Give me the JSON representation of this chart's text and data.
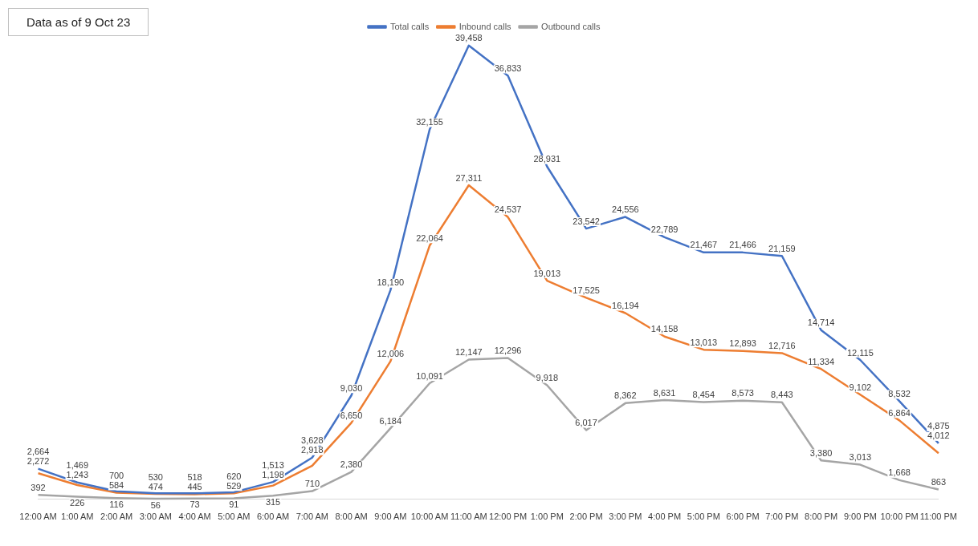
{
  "chart_data": {
    "type": "line",
    "annotations": [
      "Data as of 9 Oct 23"
    ],
    "categories": [
      "12:00 AM",
      "1:00 AM",
      "2:00 AM",
      "3:00 AM",
      "4:00 AM",
      "5:00 AM",
      "6:00 AM",
      "7:00 AM",
      "8:00 AM",
      "9:00 AM",
      "10:00 AM",
      "11:00 AM",
      "12:00 PM",
      "1:00 PM",
      "2:00 PM",
      "3:00 PM",
      "4:00 PM",
      "5:00 PM",
      "6:00 PM",
      "7:00 PM",
      "8:00 PM",
      "9:00 PM",
      "10:00 PM",
      "11:00 PM"
    ],
    "series": [
      {
        "name": "Total calls",
        "color": "#4472c4",
        "values": [
          2664,
          1469,
          700,
          530,
          518,
          620,
          1513,
          3628,
          9030,
          18190,
          32155,
          39458,
          36833,
          28931,
          23542,
          24556,
          22789,
          21467,
          21466,
          21159,
          14714,
          12115,
          8532,
          4875
        ],
        "value_labels": [
          "2,664",
          "1,469",
          "700",
          "530",
          "518",
          "620",
          "1,513",
          "3,628",
          "9,030",
          "18,190",
          "32,155",
          "39,458",
          "36,833",
          "28,931",
          "23,542",
          "24,556",
          "22,789",
          "21,467",
          "21,466",
          "21,159",
          "14,714",
          "12,115",
          "8,532",
          "4,875"
        ]
      },
      {
        "name": "Inbound calls",
        "color": "#ed7d31",
        "values": [
          2272,
          1243,
          584,
          474,
          445,
          529,
          1198,
          2918,
          6650,
          12006,
          22064,
          27311,
          24537,
          19013,
          17525,
          16194,
          14158,
          13013,
          12893,
          12716,
          11334,
          9102,
          6864,
          4012
        ],
        "value_labels": [
          "2,272",
          "1,243",
          "584",
          "474",
          "445",
          "529",
          "1,198",
          "2,918",
          "6,650",
          "12,006",
          "22,064",
          "27,311",
          "24,537",
          "19,013",
          "17,525",
          "16,194",
          "14,158",
          "13,013",
          "12,893",
          "12,716",
          "11,334",
          "9,102",
          "6,864",
          "4,012"
        ]
      },
      {
        "name": "Outbound calls",
        "color": "#a5a5a5",
        "values": [
          392,
          226,
          116,
          56,
          73,
          91,
          315,
          710,
          2380,
          6184,
          10091,
          12147,
          12296,
          9918,
          6017,
          8362,
          8631,
          8454,
          8573,
          8443,
          3380,
          3013,
          1668,
          863
        ],
        "value_labels": [
          "392",
          "226",
          "116",
          "56",
          "73",
          "91",
          "315",
          "710",
          "2,380",
          "6,184",
          "10,091",
          "12,147",
          "12,296",
          "9,918",
          "6,017",
          "8,362",
          "8,631",
          "8,454",
          "8,573",
          "8,443",
          "3,380",
          "3,013",
          "1,668",
          "863"
        ]
      }
    ],
    "data_labels": true,
    "legend": "top",
    "grid": false,
    "tick_labels": "x",
    "marker": "none",
    "line_style": "solid"
  }
}
